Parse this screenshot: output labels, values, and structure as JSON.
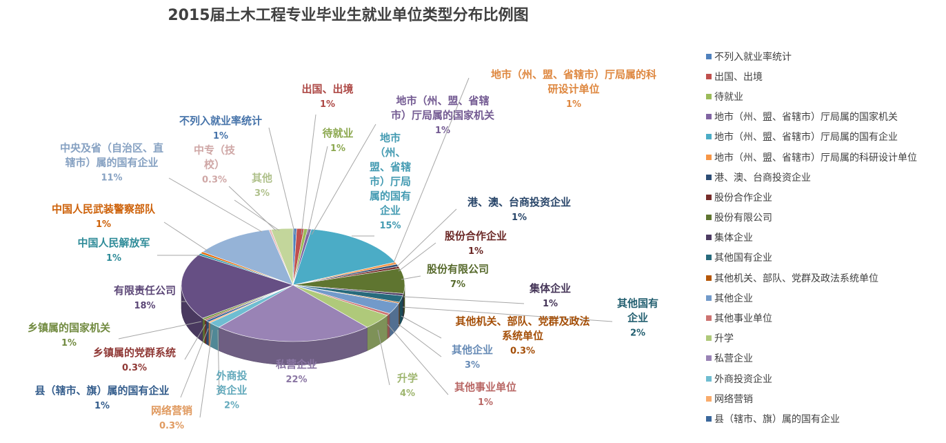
{
  "chart_data": {
    "type": "pie",
    "title": "2015届土木工程专业毕业生就业单位类型分布比例图",
    "slices": [
      {
        "name": "不列入就业率统计",
        "label": "不列入就业率统计",
        "pct_label": "1%",
        "value": 0.5,
        "color": "#4f81bd"
      },
      {
        "name": "出国、出境",
        "label": "出国、出境",
        "pct_label": "1%",
        "value": 1.0,
        "color": "#c0504d"
      },
      {
        "name": "待就业",
        "label": "待就业",
        "pct_label": "1%",
        "value": 0.5,
        "color": "#9bbb59"
      },
      {
        "name": "地市（州、盟、省辖市）厅局属的国家机关",
        "label": "地市（州、盟、省辖市）厅局属的国家机关",
        "pct_label": "1%",
        "value": 0.5,
        "color": "#8064a2"
      },
      {
        "name": "地市（州、盟、省辖市）厅局属的国有企业",
        "label": "地市（州、盟、省辖市）厅局属的国有企业",
        "pct_label": "15%",
        "value": 15.0,
        "color": "#4bacc6"
      },
      {
        "name": "地市（州、盟、省辖市）厅局属的科研设计单位",
        "label": "地市（州、盟、省辖市）厅局属的科研设计单位",
        "pct_label": "1%",
        "value": 0.6,
        "color": "#f79646"
      },
      {
        "name": "港、澳、台商投资企业",
        "label": "港、澳、台商投资企业",
        "pct_label": "1%",
        "value": 0.6,
        "color": "#2c4d75"
      },
      {
        "name": "股份合作企业",
        "label": "股份合作企业",
        "pct_label": "1%",
        "value": 0.6,
        "color": "#772c2a"
      },
      {
        "name": "股份有限公司",
        "label": "股份有限公司",
        "pct_label": "7%",
        "value": 6.8,
        "color": "#5f7530"
      },
      {
        "name": "集体企业",
        "label": "集体企业",
        "pct_label": "1%",
        "value": 0.6,
        "color": "#4d3b62"
      },
      {
        "name": "其他国有企业",
        "label": "其他国有企业",
        "pct_label": "2%",
        "value": 1.8,
        "color": "#276a7c"
      },
      {
        "name": "其他机关、部队、党群及政法系统单位",
        "label": "其他机关、部队、党群及政法系统单位",
        "pct_label": "0.3%",
        "value": 0.3,
        "color": "#b65708"
      },
      {
        "name": "其他企业",
        "label": "其他企业",
        "pct_label": "3%",
        "value": 3.0,
        "color": "#729aca"
      },
      {
        "name": "其他事业单位",
        "label": "其他事业单位",
        "pct_label": "1%",
        "value": 0.6,
        "color": "#cd7371"
      },
      {
        "name": "升学",
        "label": "升学",
        "pct_label": "4%",
        "value": 4.2,
        "color": "#afc97a"
      },
      {
        "name": "私营企业",
        "label": "私营企业",
        "pct_label": "22%",
        "value": 22.0,
        "color": "#9983b5"
      },
      {
        "name": "外商投资企业",
        "label": "外商投资企业",
        "pct_label": "2%",
        "value": 1.7,
        "color": "#6fbdd1"
      },
      {
        "name": "网络营销",
        "label": "网络营销",
        "pct_label": "0.3%",
        "value": 0.3,
        "color": "#f9ab6b"
      },
      {
        "name": "县（辖市、旗）属的国有企业",
        "label": "县（辖市、旗）属的国有企业",
        "pct_label": "1%",
        "value": 0.5,
        "color": "#3a679c"
      },
      {
        "name": "乡镇属的党群系统",
        "label": "乡镇属的党群系统",
        "pct_label": "0.3%",
        "value": 0.3,
        "color": "#9f3e3b"
      },
      {
        "name": "乡镇属的国家机关",
        "label": "乡镇属的国家机关",
        "pct_label": "1%",
        "value": 0.5,
        "color": "#7f9a48"
      },
      {
        "name": "有限责任公司",
        "label": "有限责任公司",
        "pct_label": "18%",
        "value": 18.0,
        "color": "#664f84"
      },
      {
        "name": "中国人民解放军",
        "label": "中国人民解放军",
        "pct_label": "1%",
        "value": 0.5,
        "color": "#339aa9"
      },
      {
        "name": "中国人民武装警察部队",
        "label": "中国人民武装警察部队",
        "pct_label": "1%",
        "value": 0.5,
        "color": "#e46c0a"
      },
      {
        "name": "中央及省（自治区、直辖市）属的国有企业",
        "label": "中央及省（自治区、直辖市）属的国有企业",
        "pct_label": "11%",
        "value": 11.0,
        "color": "#95b3d7"
      },
      {
        "name": "中专（技校）",
        "label": "中专（技校）",
        "pct_label": "0.3%",
        "value": 0.3,
        "color": "#e6b9b8"
      },
      {
        "name": "其他",
        "label": "其他",
        "pct_label": "3%",
        "value": 3.0,
        "color": "#c3d69b"
      }
    ],
    "legend": {
      "placement": "right",
      "items": [
        {
          "name": "不列入就业率统计",
          "color": "#4f81bd"
        },
        {
          "name": "出国、出境",
          "color": "#c0504d"
        },
        {
          "name": "待就业",
          "color": "#9bbb59"
        },
        {
          "name": "地市（州、盟、省辖市）厅局属的国家机关",
          "color": "#8064a2"
        },
        {
          "name": "地市（州、盟、省辖市）厅局属的国有企业",
          "color": "#4bacc6"
        },
        {
          "name": "地市（州、盟、省辖市）厅局属的科研设计单位",
          "color": "#f79646"
        },
        {
          "name": "港、澳、台商投资企业",
          "color": "#2c4d75"
        },
        {
          "name": "股份合作企业",
          "color": "#772c2a"
        },
        {
          "name": "股份有限公司",
          "color": "#5f7530"
        },
        {
          "name": "集体企业",
          "color": "#4d3b62"
        },
        {
          "name": "其他国有企业",
          "color": "#276a7c"
        },
        {
          "name": "其他机关、部队、党群及政法系统单位",
          "color": "#b65708"
        },
        {
          "name": "其他企业",
          "color": "#729aca"
        },
        {
          "name": "其他事业单位",
          "color": "#cd7371"
        },
        {
          "name": "升学",
          "color": "#afc97a"
        },
        {
          "name": "私营企业",
          "color": "#9983b5"
        },
        {
          "name": "外商投资企业",
          "color": "#6fbdd1"
        },
        {
          "name": "网络营销",
          "color": "#f9ab6b"
        },
        {
          "name": "县（辖市、旗）属的国有企业",
          "color": "#3a679c"
        }
      ]
    }
  }
}
